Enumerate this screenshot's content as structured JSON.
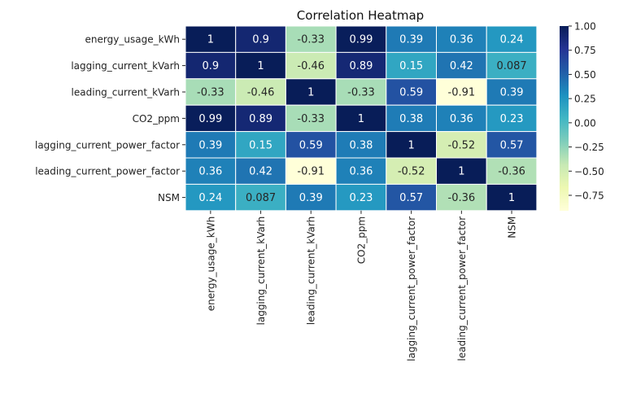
{
  "chart_data": {
    "type": "heatmap",
    "title": "Correlation Heatmap",
    "x_categories": [
      "energy_usage_kWh",
      "lagging_current_kVarh",
      "leading_current_kVarh",
      "CO2_ppm",
      "lagging_current_power_factor",
      "leading_current_power_factor",
      "NSM"
    ],
    "y_categories": [
      "energy_usage_kWh",
      "lagging_current_kVarh",
      "leading_current_kVarh",
      "CO2_ppm",
      "lagging_current_power_factor",
      "leading_current_power_factor",
      "NSM"
    ],
    "values": [
      [
        1,
        0.9,
        -0.33,
        0.99,
        0.39,
        0.36,
        0.24
      ],
      [
        0.9,
        1,
        -0.46,
        0.89,
        0.15,
        0.42,
        0.087
      ],
      [
        -0.33,
        -0.46,
        1,
        -0.33,
        0.59,
        -0.91,
        0.39
      ],
      [
        0.99,
        0.89,
        -0.33,
        1,
        0.38,
        0.36,
        0.23
      ],
      [
        0.39,
        0.15,
        0.59,
        0.38,
        1,
        -0.52,
        0.57
      ],
      [
        0.36,
        0.42,
        -0.91,
        0.36,
        -0.52,
        1,
        -0.36
      ],
      [
        0.24,
        0.087,
        0.39,
        0.23,
        0.57,
        -0.36,
        1
      ]
    ],
    "value_labels": [
      [
        "1",
        "0.9",
        "-0.33",
        "0.99",
        "0.39",
        "0.36",
        "0.24"
      ],
      [
        "0.9",
        "1",
        "-0.46",
        "0.89",
        "0.15",
        "0.42",
        "0.087"
      ],
      [
        "-0.33",
        "-0.46",
        "1",
        "-0.33",
        "0.59",
        "-0.91",
        "0.39"
      ],
      [
        "0.99",
        "0.89",
        "-0.33",
        "1",
        "0.38",
        "0.36",
        "0.23"
      ],
      [
        "0.39",
        "0.15",
        "0.59",
        "0.38",
        "1",
        "-0.52",
        "0.57"
      ],
      [
        "0.36",
        "0.42",
        "-0.91",
        "0.36",
        "-0.52",
        "1",
        "-0.36"
      ],
      [
        "0.24",
        "0.087",
        "0.39",
        "0.23",
        "0.57",
        "-0.36",
        "1"
      ]
    ],
    "colormap": "YlGnBu",
    "colorbar": {
      "range": [
        -0.91,
        1
      ],
      "ticks": [
        1.0,
        0.75,
        0.5,
        0.25,
        0.0,
        -0.25,
        -0.5,
        -0.75
      ],
      "tick_labels": [
        "1.00",
        "0.75",
        "0.50",
        "0.25",
        "0.00",
        "−0.25",
        "−0.50",
        "−0.75"
      ],
      "placement": "right"
    },
    "grid_color": "#ffffff"
  }
}
